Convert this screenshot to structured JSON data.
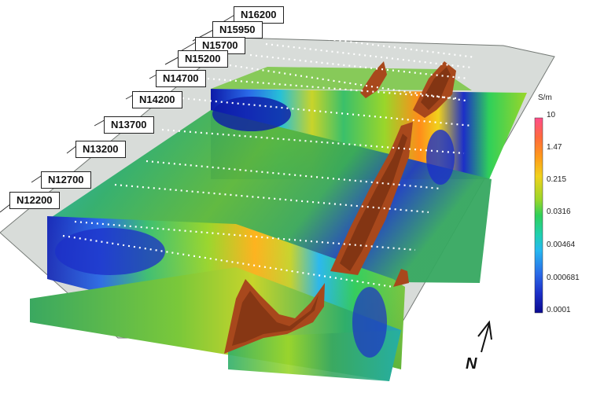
{
  "survey_lines": [
    "N16200",
    "N15950",
    "N15700",
    "N15200",
    "N14700",
    "N14200",
    "N13700",
    "N13200",
    "N12700",
    "N12200"
  ],
  "colorbar": {
    "unit": "S/m",
    "ticks": [
      "10",
      "1.47",
      "0.215",
      "0.0316",
      "0.00464",
      "0.000681",
      "0.0001"
    ],
    "colors": [
      "#ff4d8a",
      "#ff6a3d",
      "#ff9a1a",
      "#f0d21c",
      "#9ad62a",
      "#2fd05a",
      "#1fd0b0",
      "#26b8f0",
      "#2a6ae8",
      "#1c2fc8",
      "#0a0a90"
    ]
  },
  "north_arrow": {
    "label": "N"
  },
  "colors": {
    "terrain": "#d8ddd9",
    "terrain_edge": "#8a8f8b",
    "conductor": "#a8481c",
    "conductor_dark": "#6b2a0e"
  }
}
